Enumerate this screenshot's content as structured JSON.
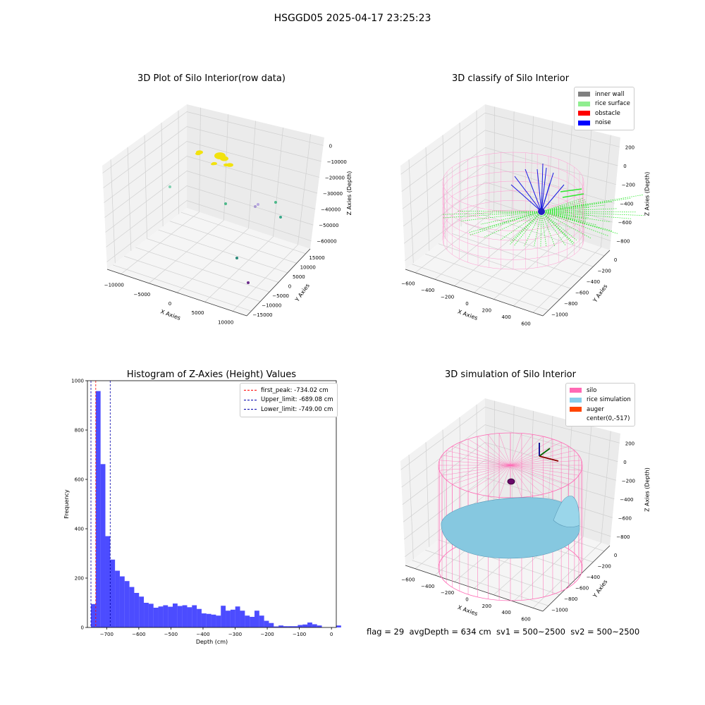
{
  "suptitle": "HSGGD05 2025-04-17 23:25:23",
  "panels": {
    "raw": {
      "title": "3D Plot of Silo Interior(row data)",
      "xlabel": "X Axies",
      "ylabel": "Y Axies",
      "zlabel": "Z Axies (Depth)",
      "xticks": [
        "−10000",
        "−5000",
        "0",
        "5000",
        "10000"
      ],
      "yticks": [
        "15000",
        "10000",
        "5000",
        "0",
        "−5000",
        "−10000",
        "−15000"
      ],
      "zticks": [
        "0",
        "−10000",
        "−20000",
        "−30000",
        "−40000",
        "−50000",
        "−60000"
      ]
    },
    "classify": {
      "title": "3D classify of Silo Interior",
      "xlabel": "X Axies",
      "ylabel": "Y Axies",
      "zlabel": "Z Axies (Depth)",
      "xticks": [
        "−600",
        "−400",
        "−200",
        "0",
        "200",
        "400",
        "600"
      ],
      "yticks": [
        "0",
        "−200",
        "−400",
        "−600",
        "−800",
        "−1000"
      ],
      "zticks": [
        "200",
        "0",
        "−200",
        "−400",
        "−600",
        "−800"
      ],
      "legend": [
        {
          "label": "inner wall",
          "color": "#808080"
        },
        {
          "label": "rice surface",
          "color": "#90ee90"
        },
        {
          "label": "obstacle",
          "color": "#ff0000"
        },
        {
          "label": "noise",
          "color": "#0000ff"
        }
      ]
    },
    "simulation": {
      "title": "3D simulation of Silo Interior",
      "xlabel": "X Axies",
      "ylabel": "Y Axies",
      "zlabel": "Z Axies (Depth)",
      "xticks": [
        "−600",
        "−400",
        "−200",
        "0",
        "200",
        "400",
        "600"
      ],
      "yticks": [
        "0",
        "−200",
        "−400",
        "−600",
        "−800",
        "−1000"
      ],
      "zticks": [
        "200",
        "0",
        "−200",
        "−400",
        "−600",
        "−800"
      ],
      "legend": [
        {
          "label": "silo",
          "color": "#ff69b4"
        },
        {
          "label": "rice simulation",
          "color": "#87ceeb"
        },
        {
          "label": "auger",
          "color": "#ff4500"
        },
        {
          "label": "center(0,-517)",
          "color": ""
        }
      ]
    }
  },
  "chart_data": {
    "type": "bar",
    "title": "Histogram of Z-Axies (Height) Values",
    "xlabel": "Depth (cm)",
    "ylabel": "Frequency",
    "xlim": [
      -760,
      15
    ],
    "ylim": [
      0,
      1000
    ],
    "xticks": [
      "−700",
      "−600",
      "−500",
      "−400",
      "−300",
      "−200",
      "−100",
      "0"
    ],
    "yticks": [
      "0",
      "200",
      "400",
      "600",
      "800",
      "1000"
    ],
    "bin_start": -749,
    "bin_width": 14.98,
    "color": "#0000ff",
    "values": [
      95,
      958,
      662,
      370,
      275,
      230,
      207,
      188,
      164,
      140,
      125,
      100,
      96,
      80,
      85,
      90,
      84,
      97,
      87,
      90,
      82,
      90,
      75,
      57,
      55,
      52,
      48,
      88,
      68,
      72,
      85,
      68,
      48,
      43,
      68,
      48,
      27,
      18,
      4,
      8,
      5,
      5,
      5,
      10,
      12,
      20,
      13,
      8,
      0,
      0,
      0,
      8
    ],
    "vlines": [
      {
        "label": "first_peak: -734.02 cm",
        "value": -734.02,
        "color": "#ff0000"
      },
      {
        "label": "Upper_limit: -689.08 cm",
        "value": -689.08,
        "color": "#0000aa"
      },
      {
        "label": "Lower_limit: -749.00 cm",
        "value": -749.0,
        "color": "#0000aa"
      }
    ]
  },
  "footer": "flag = 29  avgDepth = 634 cm  sv1 = 500~2500  sv2 = 500~2500"
}
